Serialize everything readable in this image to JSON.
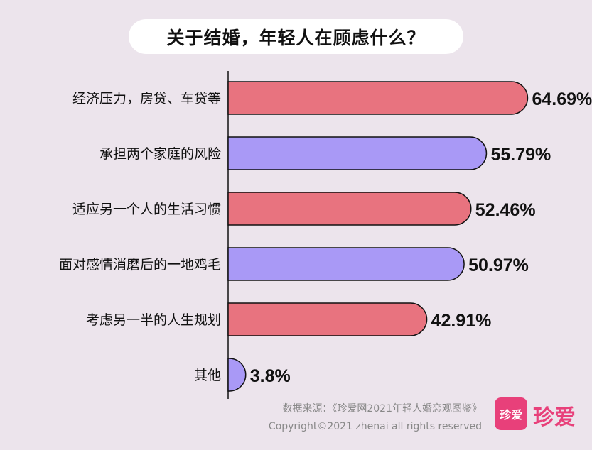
{
  "chart_data": {
    "type": "bar",
    "orientation": "horizontal",
    "title": "关于结婚，年轻人在顾虑什么？",
    "categories": [
      "经济压力，房贷、车贷等",
      "承担两个家庭的风险",
      "适应另一个人的生活习惯",
      "面对感情消磨后的一地鸡毛",
      "考虑另一半的人生规划",
      "其他"
    ],
    "values": [
      64.69,
      55.79,
      52.46,
      50.97,
      42.91,
      3.8
    ],
    "value_labels": [
      "64.69%",
      "55.79%",
      "52.46%",
      "50.97%",
      "42.91%",
      "3.8%"
    ],
    "bar_colors": [
      "#e8737f",
      "#a999f6",
      "#e8737f",
      "#a999f6",
      "#e8737f",
      "#a999f6"
    ],
    "xlim": [
      0,
      70
    ],
    "grid": false,
    "legend": "none"
  },
  "footer": {
    "source": "数据来源：《珍爱网2021年轻人婚恋观图鉴》",
    "copyright": "Copyright©2021  zhenai  all rights reserved"
  },
  "logo": {
    "badge_text": "珍爱",
    "text": "珍爱",
    "color": "#e8407a"
  }
}
